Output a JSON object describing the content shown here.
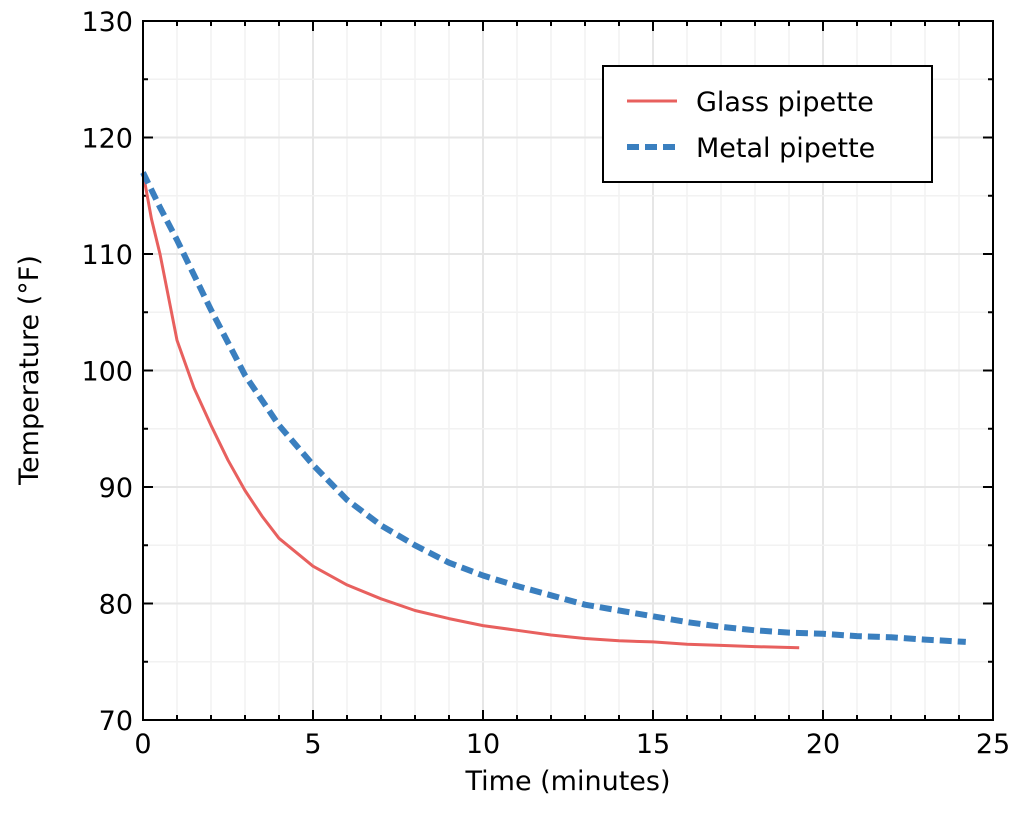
{
  "chart_data": {
    "type": "line",
    "title": "",
    "xlabel": "Time (minutes)",
    "ylabel": "Temperature (°F)",
    "xlim": [
      0,
      25
    ],
    "ylim": [
      70,
      130
    ],
    "xticks": [
      0,
      5,
      10,
      15,
      20,
      25
    ],
    "yticks": [
      70,
      80,
      90,
      100,
      110,
      120,
      130
    ],
    "grid": true,
    "legend_position": "top-right",
    "series": [
      {
        "name": "Glass pipette",
        "color": "#e8605e",
        "style": "solid",
        "x": [
          0,
          0.25,
          0.5,
          1,
          1.5,
          2,
          2.5,
          3,
          3.5,
          4,
          5,
          6,
          7,
          8,
          9,
          10,
          11,
          12,
          13,
          14,
          15,
          16,
          17,
          18,
          19.3
        ],
        "y": [
          117,
          113,
          110,
          102.6,
          98.5,
          95.3,
          92.3,
          89.7,
          87.5,
          85.6,
          83.2,
          81.6,
          80.4,
          79.4,
          78.7,
          78.1,
          77.7,
          77.3,
          77.0,
          76.8,
          76.7,
          76.5,
          76.4,
          76.3,
          76.2
        ]
      },
      {
        "name": "Metal pipette",
        "color": "#3a7fbf",
        "style": "dashed",
        "x": [
          0,
          0.5,
          1,
          2,
          3,
          4,
          5,
          6,
          7,
          8,
          9,
          10,
          11,
          12,
          13,
          14,
          15,
          16,
          17,
          18,
          19,
          20,
          21,
          22,
          23,
          24.2
        ],
        "y": [
          117,
          114,
          111.2,
          105.2,
          99.6,
          95.3,
          91.9,
          88.9,
          86.7,
          85,
          83.5,
          82.4,
          81.5,
          80.7,
          79.9,
          79.4,
          78.9,
          78.4,
          78.0,
          77.7,
          77.5,
          77.4,
          77.2,
          77.1,
          76.9,
          76.7
        ]
      }
    ]
  }
}
